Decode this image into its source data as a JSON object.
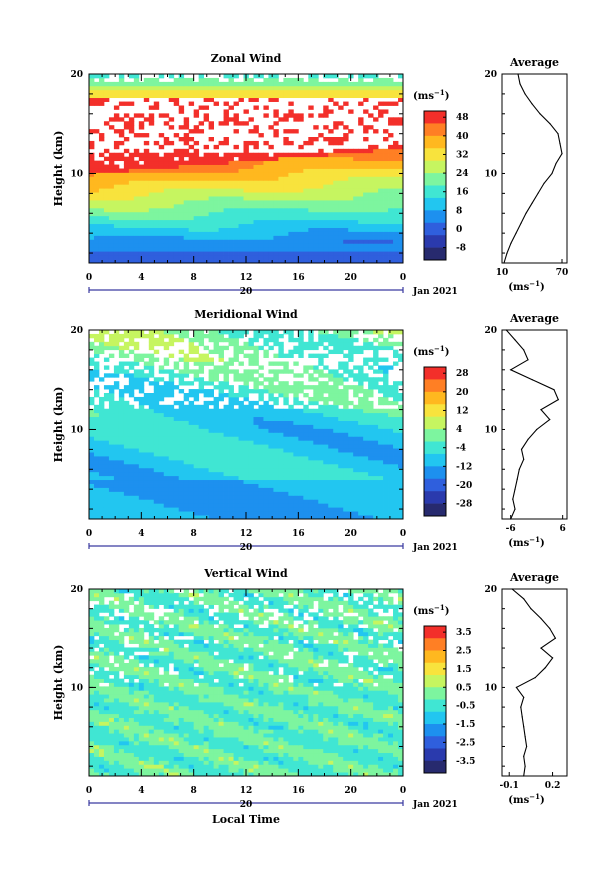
{
  "chart_data": [
    {
      "type": "heatmap",
      "title": "Zonal Wind",
      "ylabel": "Height (km)",
      "y_ticks": [
        "20",
        "10"
      ],
      "x_ticks": [
        "0",
        "4",
        "8",
        "12",
        "16",
        "20",
        "0"
      ],
      "day_label": "20",
      "date_label": "Jan 2021",
      "ylim": [
        1,
        20
      ],
      "xlim": [
        0,
        24
      ],
      "colorbar": {
        "unit": "(ms",
        "unit_exp": "−1",
        "unit_close": ")",
        "labels": [
          "48",
          "40",
          "32",
          "24",
          "16",
          "8",
          "0",
          "-8"
        ],
        "colors": [
          "#f32f2a",
          "#ff7f24",
          "#ffb81f",
          "#f8e33d",
          "#c6f560",
          "#7df59f",
          "#40e6d3",
          "#22c6f0",
          "#1d90ef",
          "#2f5fdd",
          "#2a3aad",
          "#272a6e"
        ]
      },
      "profile": {
        "title": "Average",
        "x_ticks": [
          "10",
          "70"
        ],
        "xlim": [
          10,
          75
        ],
        "height_km": [
          1,
          2,
          3,
          4,
          5,
          6,
          7,
          8,
          9,
          10,
          11,
          12,
          13,
          14,
          15,
          16,
          17,
          18,
          19,
          20
        ],
        "values": [
          12,
          15,
          19,
          24,
          29,
          34,
          40,
          46,
          52,
          60,
          64,
          70,
          68,
          66,
          58,
          48,
          40,
          33,
          28,
          26
        ]
      }
    },
    {
      "type": "heatmap",
      "title": "Meridional Wind",
      "ylabel": "Height (km)",
      "y_ticks": [
        "20",
        "10"
      ],
      "x_ticks": [
        "0",
        "4",
        "8",
        "12",
        "16",
        "20",
        "0"
      ],
      "day_label": "20",
      "date_label": "Jan 2021",
      "ylim": [
        1,
        20
      ],
      "xlim": [
        0,
        24
      ],
      "colorbar": {
        "unit": "(ms",
        "unit_exp": "−1",
        "unit_close": ")",
        "labels": [
          "28",
          "20",
          "12",
          "4",
          "-4",
          "-12",
          "-20",
          "-28"
        ],
        "colors": [
          "#f32f2a",
          "#ff7f24",
          "#ffb81f",
          "#f8e33d",
          "#c6f560",
          "#7df59f",
          "#40e6d3",
          "#22c6f0",
          "#1d90ef",
          "#2f5fdd",
          "#2a3aad",
          "#272a6e"
        ]
      },
      "profile": {
        "title": "Average",
        "x_ticks": [
          "-6",
          "6"
        ],
        "xlim": [
          -8,
          7
        ],
        "height_km": [
          1,
          2,
          3,
          4,
          5,
          6,
          7,
          8,
          9,
          10,
          11,
          12,
          13,
          14,
          15,
          16,
          17,
          18,
          19,
          20
        ],
        "values": [
          -6,
          -5,
          -5.5,
          -5,
          -4.5,
          -4,
          -3,
          -3.5,
          -2,
          0,
          3,
          1,
          5,
          4,
          -1,
          -6,
          -2,
          -3,
          -5,
          -7
        ]
      }
    },
    {
      "type": "heatmap",
      "title": "Vertical Wind",
      "ylabel": "Height (km)",
      "xlabel": "Local Time",
      "y_ticks": [
        "20",
        "10"
      ],
      "x_ticks": [
        "0",
        "4",
        "8",
        "12",
        "16",
        "20",
        "0"
      ],
      "day_label": "20",
      "date_label": "Jan 2021",
      "ylim": [
        1,
        20
      ],
      "xlim": [
        0,
        24
      ],
      "colorbar": {
        "unit": "(ms",
        "unit_exp": "−1",
        "unit_close": ")",
        "labels": [
          "3.5",
          "2.5",
          "1.5",
          "0.5",
          "-0.5",
          "-1.5",
          "-2.5",
          "-3.5"
        ],
        "colors": [
          "#f32f2a",
          "#ff7f24",
          "#ffb81f",
          "#f8e33d",
          "#c6f560",
          "#7df59f",
          "#40e6d3",
          "#22c6f0",
          "#1d90ef",
          "#2f5fdd",
          "#2a3aad",
          "#272a6e"
        ]
      },
      "profile": {
        "title": "Average",
        "x_ticks": [
          "-0.1",
          "0.2"
        ],
        "xlim": [
          -0.15,
          0.3
        ],
        "height_km": [
          1,
          2,
          3,
          4,
          5,
          6,
          7,
          8,
          9,
          10,
          11,
          12,
          13,
          14,
          15,
          16,
          17,
          18,
          19,
          20
        ],
        "values": [
          0.0,
          0.01,
          0.0,
          0.02,
          0.01,
          0.0,
          -0.01,
          -0.02,
          0.0,
          -0.05,
          0.08,
          0.15,
          0.2,
          0.12,
          0.22,
          0.18,
          0.12,
          0.05,
          0.0,
          -0.08
        ]
      }
    }
  ]
}
